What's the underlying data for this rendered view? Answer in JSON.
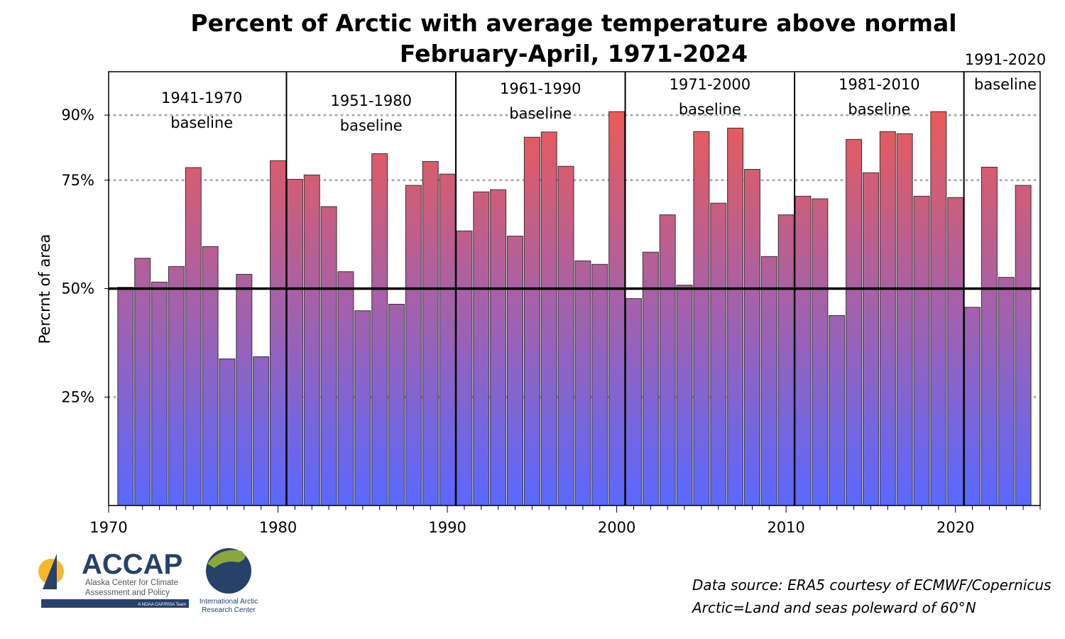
{
  "chart_data": {
    "type": "bar",
    "title": "Percent of Arctic with average temperature above normal",
    "subtitle": "February-April, 1971-2024",
    "xlabel": "",
    "ylabel": "Percrnt of area",
    "ylim": [
      0,
      100
    ],
    "xlim": [
      1970,
      2025
    ],
    "xticks": [
      "1970",
      "1980",
      "1990",
      "2000",
      "2010",
      "2020"
    ],
    "yticks": [
      {
        "value": 25,
        "label": "25%"
      },
      {
        "value": 50,
        "label": "50%"
      },
      {
        "value": 75,
        "label": "75%"
      },
      {
        "value": 90,
        "label": "90%"
      }
    ],
    "reference_line": 50,
    "years": [
      1971,
      1972,
      1973,
      1974,
      1975,
      1976,
      1977,
      1978,
      1979,
      1980,
      1981,
      1982,
      1983,
      1984,
      1985,
      1986,
      1987,
      1988,
      1989,
      1990,
      1991,
      1992,
      1993,
      1994,
      1995,
      1996,
      1997,
      1998,
      1999,
      2000,
      2001,
      2002,
      2003,
      2004,
      2005,
      2006,
      2007,
      2008,
      2009,
      2010,
      2011,
      2012,
      2013,
      2014,
      2015,
      2016,
      2017,
      2018,
      2019,
      2020,
      2021,
      2022,
      2023,
      2024
    ],
    "values": [
      50.3,
      57.0,
      51.5,
      55.1,
      77.9,
      59.7,
      33.8,
      53.3,
      34.3,
      79.5,
      75.2,
      76.2,
      68.9,
      53.9,
      44.9,
      81.1,
      46.4,
      73.8,
      79.3,
      76.4,
      63.3,
      72.3,
      72.8,
      62.1,
      84.9,
      86.1,
      78.2,
      56.4,
      55.6,
      90.8,
      47.7,
      58.4,
      67.0,
      50.8,
      86.2,
      69.7,
      87.0,
      77.5,
      57.4,
      67.0,
      71.3,
      70.7,
      43.8,
      84.4,
      76.7,
      86.2,
      85.7,
      71.3,
      90.8,
      71.0,
      45.7,
      78.0,
      52.6,
      73.8
    ],
    "baselines": [
      {
        "period": "1941-1970",
        "label": "baseline",
        "start": 1970.5,
        "end": 1980.5
      },
      {
        "period": "1951-1980",
        "label": "baseline",
        "start": 1980.5,
        "end": 1990.5
      },
      {
        "period": "1961-1990",
        "label": "baseline",
        "start": 1990.5,
        "end": 2000.5
      },
      {
        "period": "1971-2000",
        "label": "baseline",
        "start": 2000.5,
        "end": 2010.5
      },
      {
        "period": "1981-2010",
        "label": "baseline",
        "start": 2010.5,
        "end": 2020.5
      },
      {
        "period": "1991-2020",
        "label": "baseline",
        "start": 2020.5,
        "end": 2025
      }
    ],
    "colors": {
      "top": "#ee5a55",
      "bottom": "#5a68ff"
    }
  },
  "footer": {
    "source_line1": "Data source: ERA5 courtesy of ECMWF/Copernicus",
    "source_line2": "Arctic=Land and seas poleward of 60°N"
  },
  "logos": {
    "accap": "ACCAP",
    "accap_sub1": "Alaska Center for Climate",
    "accap_sub2": "Assessment and Policy",
    "accap_tag": "A NOAA CAP/RISA Team",
    "iarc1": "International Arctic",
    "iarc2": "Research Center"
  }
}
